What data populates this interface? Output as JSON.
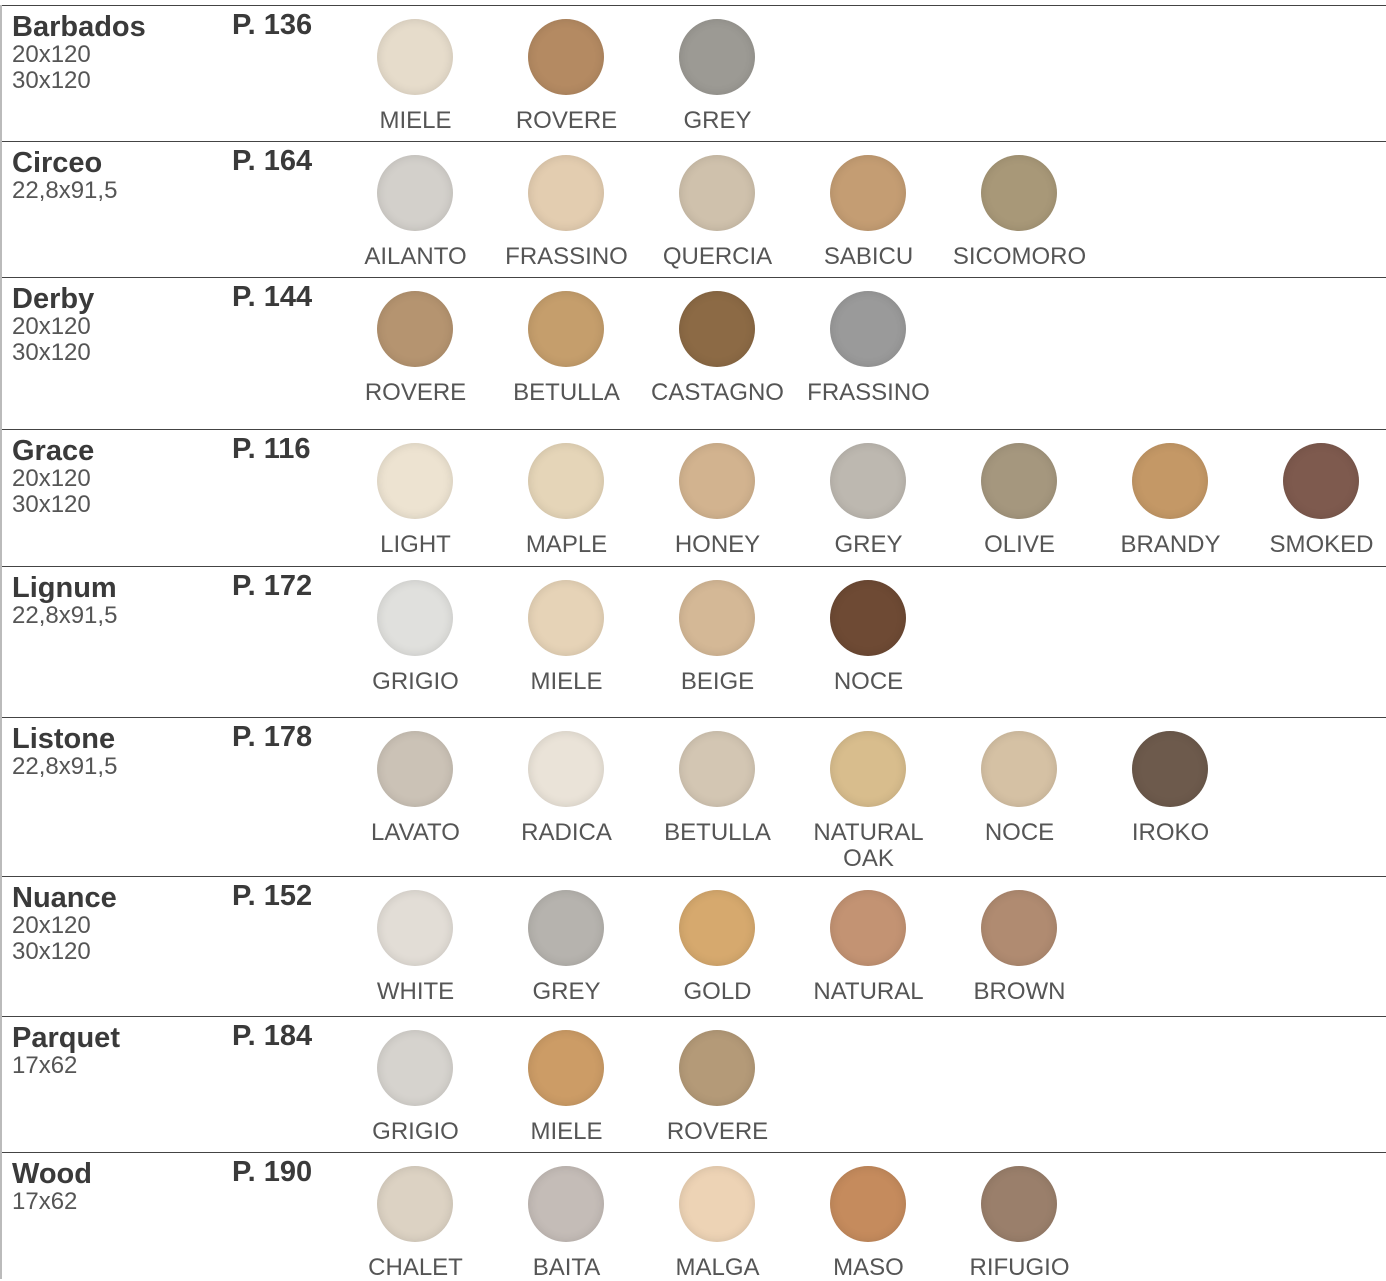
{
  "rows": [
    {
      "name": "Barbados",
      "sizes": [
        "20x120",
        "30x120"
      ],
      "page": "P. 136",
      "finishes": [
        {
          "label": "MIELE",
          "color": "#e6dccb"
        },
        {
          "label": "ROVERE",
          "color": "#b48a62"
        },
        {
          "label": "GREY",
          "color": "#9c9a94"
        }
      ]
    },
    {
      "name": "Circeo",
      "sizes": [
        "22,8x91,5"
      ],
      "page": "P. 164",
      "finishes": [
        {
          "label": "AILANTO",
          "color": "#d3d0cb"
        },
        {
          "label": "FRASSINO",
          "color": "#e3cdb0"
        },
        {
          "label": "QUERCIA",
          "color": "#cfc1ac"
        },
        {
          "label": "SABICU",
          "color": "#c49d73"
        },
        {
          "label": "SICOMORO",
          "color": "#a89878"
        }
      ]
    },
    {
      "name": "Derby",
      "sizes": [
        "20x120",
        "30x120"
      ],
      "page": "P. 144",
      "finishes": [
        {
          "label": "ROVERE",
          "color": "#b59470"
        },
        {
          "label": "BETULLA",
          "color": "#c59e6c"
        },
        {
          "label": "CASTAGNO",
          "color": "#8c6a45"
        },
        {
          "label": "FRASSINO",
          "color": "#9a9a9a"
        }
      ]
    },
    {
      "name": "Grace",
      "sizes": [
        "20x120",
        "30x120"
      ],
      "page": "P. 116",
      "finishes": [
        {
          "label": "LIGHT",
          "color": "#ede3d1"
        },
        {
          "label": "MAPLE",
          "color": "#e5d5b8"
        },
        {
          "label": "HONEY",
          "color": "#d2b38f"
        },
        {
          "label": "GREY",
          "color": "#bdb8b0"
        },
        {
          "label": "OLIVE",
          "color": "#a5977e"
        },
        {
          "label": "BRANDY",
          "color": "#c49866"
        },
        {
          "label": "SMOKED",
          "color": "#7e5a4e"
        }
      ]
    },
    {
      "name": "Lignum",
      "sizes": [
        "22,8x91,5"
      ],
      "page": "P. 172",
      "finishes": [
        {
          "label": "GRIGIO",
          "color": "#e0e0dd"
        },
        {
          "label": "MIELE",
          "color": "#e6d3b7"
        },
        {
          "label": "BEIGE",
          "color": "#d4b896"
        },
        {
          "label": "NOCE",
          "color": "#6e4a34"
        }
      ]
    },
    {
      "name": "Listone",
      "sizes": [
        "22,8x91,5"
      ],
      "page": "P. 178",
      "finishes": [
        {
          "label": "LAVATO",
          "color": "#cbc2b6"
        },
        {
          "label": "RADICA",
          "color": "#eae3d8"
        },
        {
          "label": "BETULLA",
          "color": "#d3c6b3"
        },
        {
          "label": "NATURAL\nOAK",
          "color": "#d8bd8d"
        },
        {
          "label": "NOCE",
          "color": "#d5c1a4"
        },
        {
          "label": "IROKO",
          "color": "#6d5a4c"
        }
      ]
    },
    {
      "name": "Nuance",
      "sizes": [
        "20x120",
        "30x120"
      ],
      "page": "P. 152",
      "finishes": [
        {
          "label": "WHITE",
          "color": "#e2ddd6"
        },
        {
          "label": "GREY",
          "color": "#b6b3ae"
        },
        {
          "label": "GOLD",
          "color": "#d6a96e"
        },
        {
          "label": "NATURAL",
          "color": "#c39373"
        },
        {
          "label": "BROWN",
          "color": "#b08b71"
        }
      ]
    },
    {
      "name": "Parquet",
      "sizes": [
        "17x62"
      ],
      "page": "P. 184",
      "finishes": [
        {
          "label": "GRIGIO",
          "color": "#d6d3ce"
        },
        {
          "label": "MIELE",
          "color": "#cc9c66"
        },
        {
          "label": "ROVERE",
          "color": "#b49a78"
        }
      ]
    },
    {
      "name": "Wood",
      "sizes": [
        "17x62"
      ],
      "page": "P. 190",
      "finishes": [
        {
          "label": "CHALET",
          "color": "#dcd2c3"
        },
        {
          "label": "BAITA",
          "color": "#c4bcb7"
        },
        {
          "label": "MALGA",
          "color": "#edd3b5"
        },
        {
          "label": "MASO",
          "color": "#c58b5d"
        },
        {
          "label": "RIFUGIO",
          "color": "#9a7f6b"
        }
      ]
    }
  ]
}
